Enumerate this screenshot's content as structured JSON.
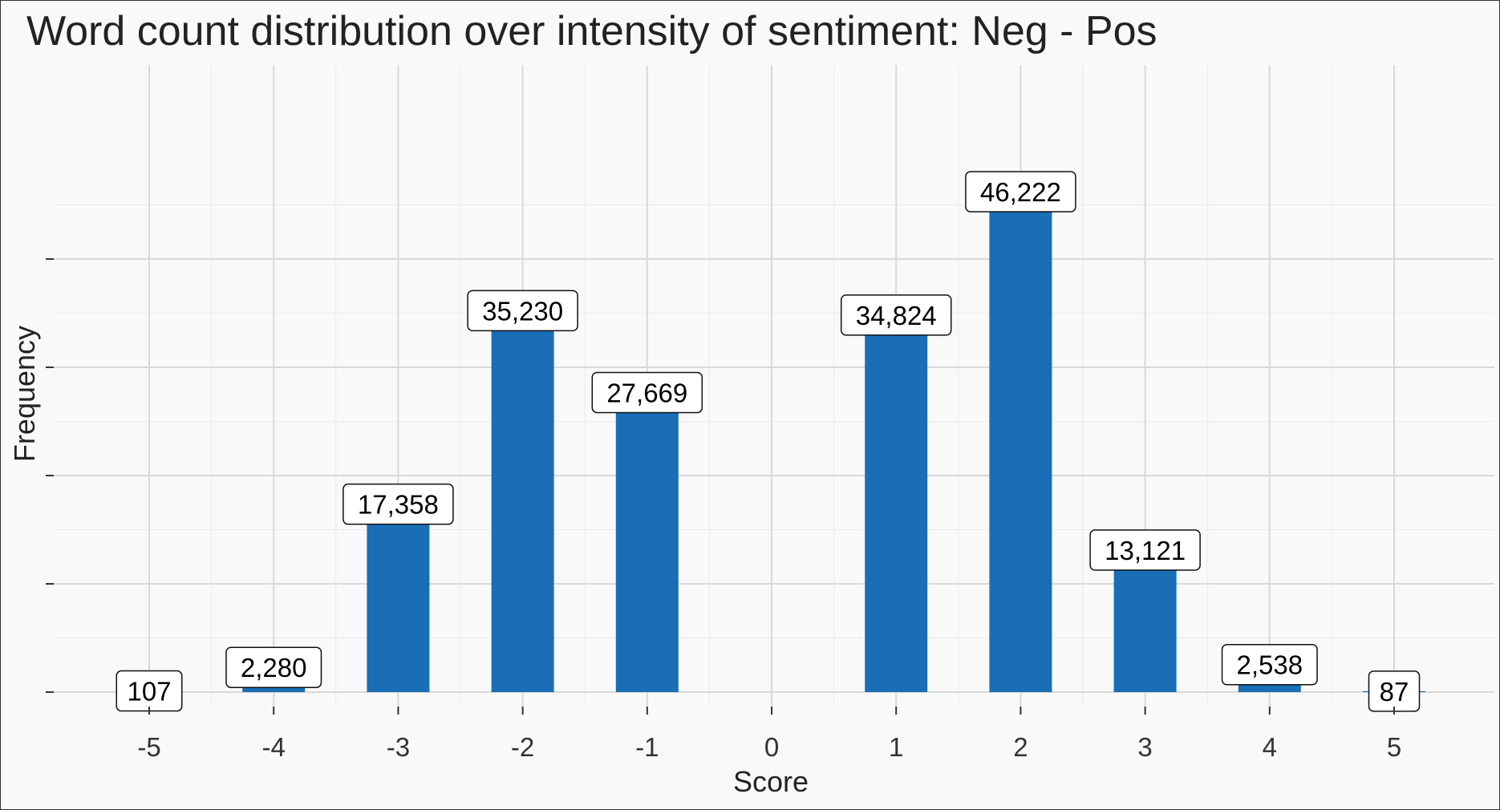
{
  "chart_data": {
    "type": "bar",
    "title": "Word count distribution over intensity of sentiment: Neg - Pos",
    "xlabel": "Score",
    "ylabel": "Frequency",
    "categories": [
      "-5",
      "-4",
      "-3",
      "-2",
      "-1",
      "0",
      "1",
      "2",
      "3",
      "4",
      "5"
    ],
    "values": [
      107,
      2280,
      17358,
      35230,
      27669,
      0,
      34824,
      46222,
      13121,
      2538,
      87
    ],
    "data_labels": [
      "107",
      "2,280",
      "17,358",
      "35,230",
      "27,669",
      "",
      "34,824",
      "46,222",
      "13,121",
      "2,538",
      "87"
    ],
    "ylim": [
      0,
      48000
    ],
    "y_ticks": [
      0,
      10000,
      20000,
      30000,
      40000
    ],
    "y_tick_labels_visible": false,
    "grid": true,
    "legend": "none",
    "bar_color": "#1a6eb5",
    "background_color": "#f9f9f9",
    "grid_color": "#d9d9d9"
  }
}
